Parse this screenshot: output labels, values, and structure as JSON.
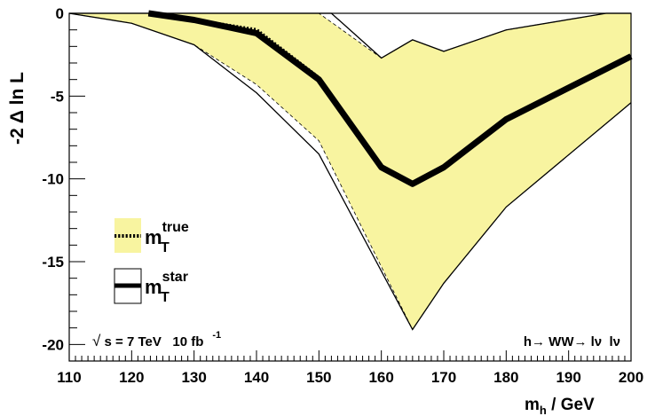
{
  "chart_data": {
    "type": "line",
    "xlabel": {
      "main": "m",
      "sub": "h",
      "rest": " / GeV"
    },
    "ylabel": "-2 Δ ln L",
    "xlim": [
      110,
      200
    ],
    "ylim": [
      -21,
      0
    ],
    "xticks": [
      "110",
      "120",
      "130",
      "140",
      "150",
      "160",
      "170",
      "180",
      "190",
      "200"
    ],
    "yticks": [
      "0",
      "-5",
      "-10",
      "-15",
      "-20"
    ],
    "colors": {
      "band": "#f8f4a0",
      "line": "#000000"
    },
    "series": [
      {
        "key": "true",
        "style": "dotted-thick",
        "x": [
          122.7,
          130,
          140,
          150,
          160,
          165,
          170,
          180,
          200
        ],
        "y": [
          0.0,
          -0.4,
          -1.0,
          -3.9,
          -9.3,
          -10.3,
          -9.3,
          -6.4,
          -2.6
        ],
        "band_upper": {
          "x": [
            110,
            150,
            160,
            165,
            170,
            180,
            196,
            200
          ],
          "y": [
            0.0,
            0.0,
            -2.7,
            -1.6,
            -2.3,
            -1.0,
            0.0,
            0.0
          ]
        },
        "band_lower": {
          "x": [
            110,
            120,
            130,
            140,
            150,
            165,
            170,
            180,
            200
          ],
          "y": [
            0.0,
            -0.6,
            -1.9,
            -4.3,
            -7.7,
            -19.1,
            -16.3,
            -11.7,
            -5.4
          ]
        }
      },
      {
        "key": "star",
        "style": "solid-thick",
        "x": [
          122.7,
          130,
          140,
          150,
          160,
          165,
          170,
          180,
          200
        ],
        "y": [
          0.0,
          -0.4,
          -1.2,
          -4.0,
          -9.3,
          -10.3,
          -9.3,
          -6.4,
          -2.6
        ],
        "band_upper": {
          "x": [
            110,
            152,
            160,
            165,
            170,
            180,
            196,
            200
          ],
          "y": [
            0.0,
            0.0,
            -2.7,
            -1.6,
            -2.3,
            -1.0,
            0.0,
            0.0
          ]
        },
        "band_lower": {
          "x": [
            110,
            120,
            130,
            140,
            150,
            165,
            170,
            180,
            200
          ],
          "y": [
            0.0,
            -0.6,
            -1.9,
            -4.8,
            -8.5,
            -19.1,
            -16.3,
            -11.7,
            -5.4
          ]
        }
      }
    ],
    "legend": [
      {
        "key": "true",
        "main": "m",
        "sub": "T",
        "sup": "true"
      },
      {
        "key": "star",
        "main": "m",
        "sub": "T",
        "sup": "star"
      }
    ],
    "annotations": {
      "left": {
        "root": "√",
        "s_text": " s = 7 TeV   10 fb",
        "exp": "-1"
      },
      "right": {
        "text": "h→ WW→ lν  lν"
      }
    }
  }
}
